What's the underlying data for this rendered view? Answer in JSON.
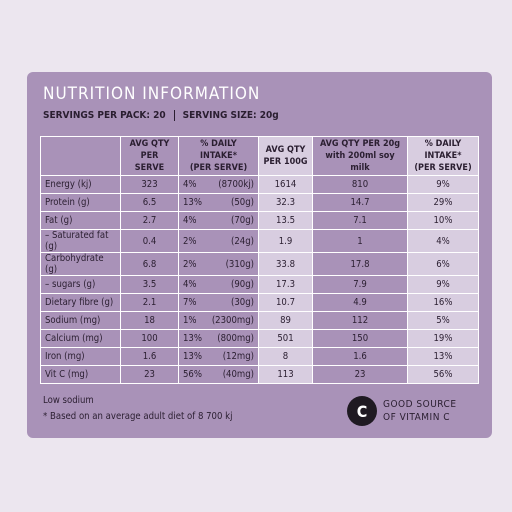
{
  "header": {
    "title": "NUTRITION INFORMATION",
    "servings": "SERVINGS PER PACK: 20",
    "serving_size": "SERVING SIZE: 20g"
  },
  "table": {
    "columns": [
      [
        ""
      ],
      [
        "AVG QTY",
        "PER SERVE"
      ],
      [
        "% DAILY INTAKE*",
        "(PER SERVE)"
      ],
      [
        "AVG QTY",
        "PER 100G"
      ],
      [
        "AVG QTY PER 20g",
        "with 200ml soy milk"
      ],
      [
        "% DAILY INTAKE*",
        "(PER SERVE)"
      ]
    ],
    "rows": [
      [
        "Energy (kj)",
        "323",
        "4%",
        "(8700kj)",
        "1614",
        "810",
        "9%"
      ],
      [
        "Protein (g)",
        "6.5",
        "13%",
        "(50g)",
        "32.3",
        "14.7",
        "29%"
      ],
      [
        "Fat (g)",
        "2.7",
        "4%",
        "(70g)",
        "13.5",
        "7.1",
        "10%"
      ],
      [
        "– Saturated fat (g)",
        "0.4",
        "2%",
        "(24g)",
        "1.9",
        "1",
        "4%"
      ],
      [
        "Carbohydrate (g)",
        "6.8",
        "2%",
        "(310g)",
        "33.8",
        "17.8",
        "6%"
      ],
      [
        "– sugars (g)",
        "3.5",
        "4%",
        "(90g)",
        "17.3",
        "7.9",
        "9%"
      ],
      [
        "Dietary fibre (g)",
        "2.1",
        "7%",
        "(30g)",
        "10.7",
        "4.9",
        "16%"
      ],
      [
        "Sodium (mg)",
        "18",
        "1%",
        "(2300mg)",
        "89",
        "112",
        "5%"
      ],
      [
        "Calcium (mg)",
        "100",
        "13%",
        "(800mg)",
        "501",
        "150",
        "19%"
      ],
      [
        "Iron (mg)",
        "1.6",
        "13%",
        "(12mg)",
        "8",
        "1.6",
        "13%"
      ],
      [
        "Vit C (mg)",
        "23",
        "56%",
        "(40mg)",
        "113",
        "23",
        "56%"
      ]
    ]
  },
  "footer": {
    "claim": "Low sodium",
    "note": "* Based on an average adult diet of 8 700 kj",
    "badge_icon": "C",
    "badge_lines": [
      "GOOD SOURCE",
      "OF VITAMIN C"
    ]
  }
}
